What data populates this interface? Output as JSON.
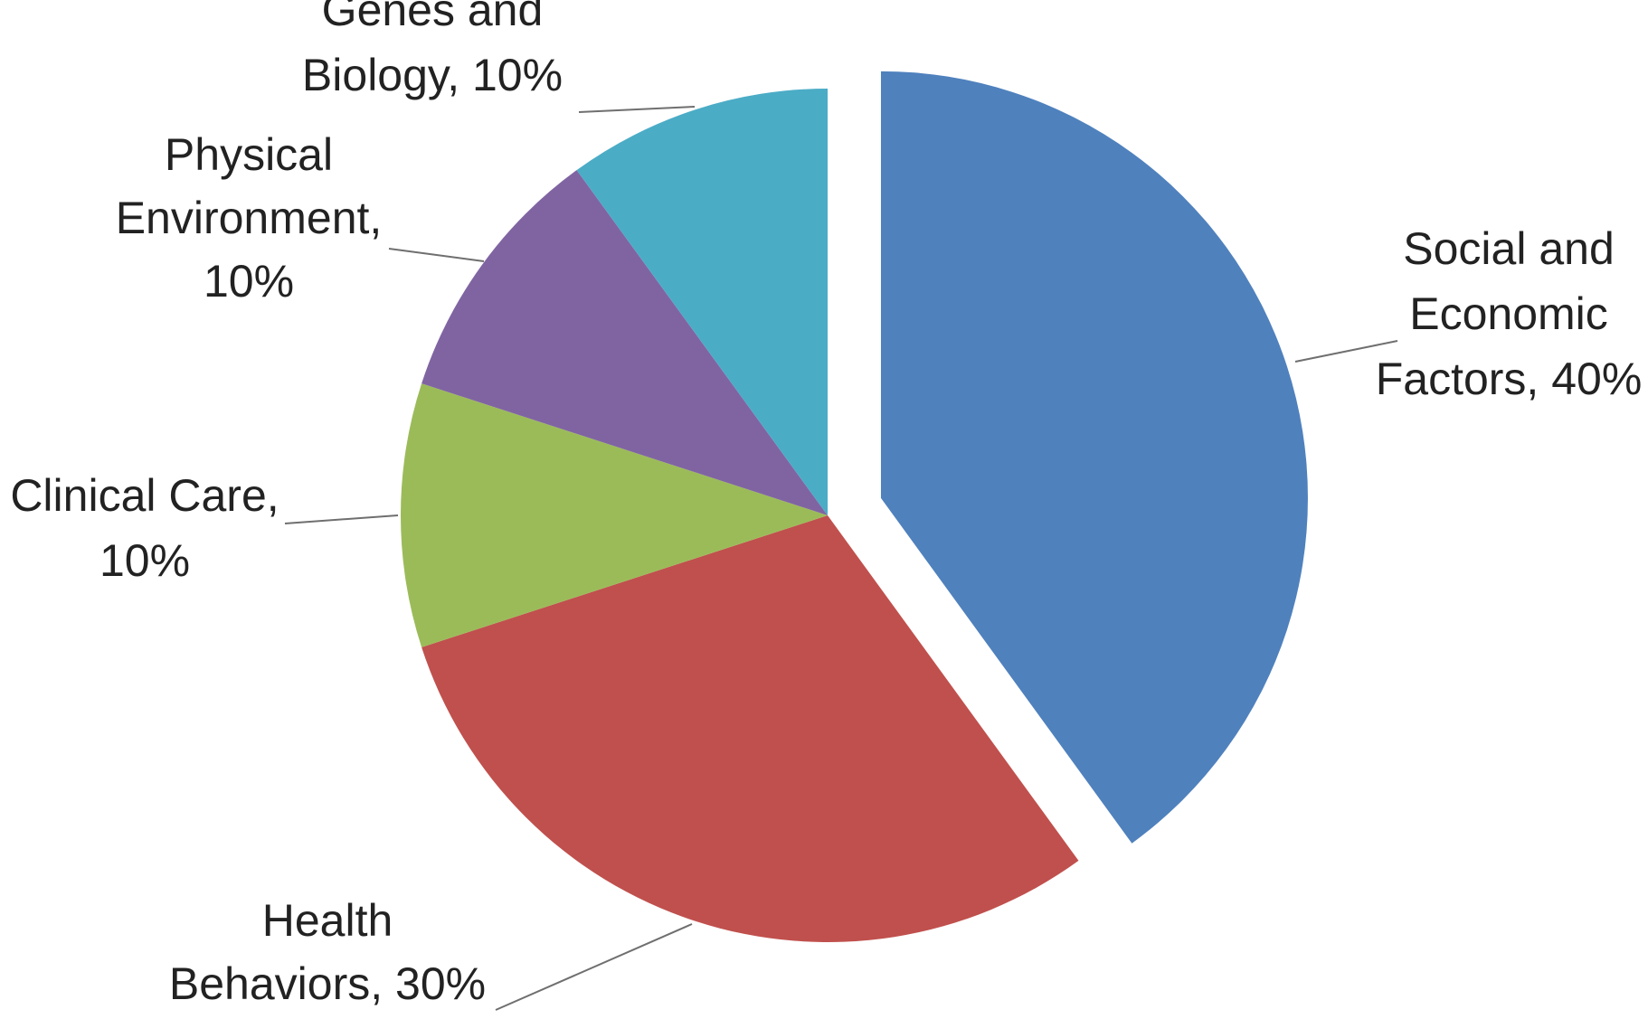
{
  "chart_data": {
    "type": "pie",
    "title": "",
    "slices": [
      {
        "name": "social-economic",
        "label_lines": [
          "Social and",
          "Economic",
          "Factors, 40%"
        ],
        "value": 40,
        "color": "#4f81bd",
        "exploded": true
      },
      {
        "name": "health-behaviors",
        "label_lines": [
          "Health",
          "Behaviors, 30%"
        ],
        "value": 30,
        "color": "#c0504d",
        "exploded": false
      },
      {
        "name": "clinical-care",
        "label_lines": [
          "Clinical Care,",
          "10%"
        ],
        "value": 10,
        "color": "#9bbb59",
        "exploded": false
      },
      {
        "name": "physical-environment",
        "label_lines": [
          "Physical",
          "Environment,",
          "10%"
        ],
        "value": 10,
        "color": "#8064a2",
        "exploded": false
      },
      {
        "name": "genes-biology",
        "label_lines": [
          "Genes and",
          "Biology, 10%"
        ],
        "value": 10,
        "color": "#4bacc6",
        "exploded": false
      }
    ],
    "legend": "none",
    "data_labels": "outside-with-leader-lines"
  }
}
